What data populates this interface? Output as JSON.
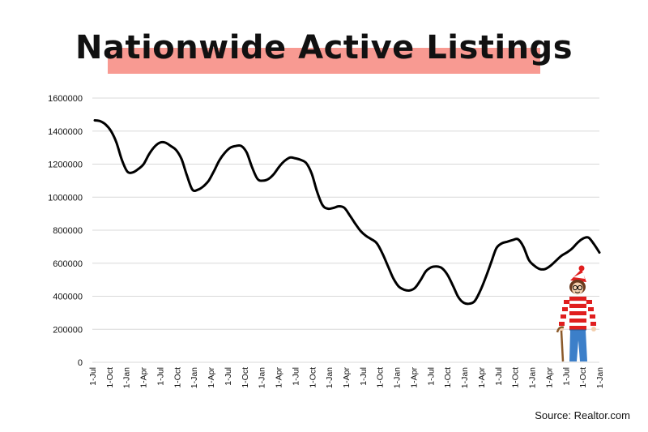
{
  "chart_data": {
    "type": "line",
    "title": "Nationwide Active Listings",
    "xlabel": "",
    "ylabel": "",
    "ylim": [
      0,
      1600000
    ],
    "y_ticks": [
      "0",
      "200000",
      "400000",
      "600000",
      "800000",
      "1000000",
      "1200000",
      "1400000",
      "1600000"
    ],
    "y_tick_values": [
      0,
      200000,
      400000,
      600000,
      800000,
      1000000,
      1200000,
      1400000,
      1600000
    ],
    "x_tick_labels": [
      "1-Jul",
      "1-Oct",
      "1-Jan",
      "1-Apr",
      "1-Jul",
      "1-Oct",
      "1-Jan",
      "1-Apr",
      "1-Jul",
      "1-Oct",
      "1-Jan",
      "1-Apr",
      "1-Jul",
      "1-Oct",
      "1-Jan",
      "1-Apr",
      "1-Jul",
      "1-Oct",
      "1-Jan",
      "1-Apr",
      "1-Jul",
      "1-Oct",
      "1-Jan",
      "1-Apr",
      "1-Jul",
      "1-Oct",
      "1-Jan",
      "1-Apr",
      "1-Jul",
      "1-Oct",
      "1-Jan"
    ],
    "grid": true,
    "line_color": "#000000",
    "series": [
      {
        "values": [
          1465000,
          1460000,
          1440000,
          1400000,
          1330000,
          1225000,
          1155000,
          1150000,
          1170000,
          1200000,
          1260000,
          1305000,
          1330000,
          1330000,
          1310000,
          1285000,
          1230000,
          1130000,
          1045000,
          1045000,
          1065000,
          1100000,
          1160000,
          1225000,
          1270000,
          1300000,
          1310000,
          1310000,
          1270000,
          1180000,
          1110000,
          1100000,
          1110000,
          1140000,
          1185000,
          1220000,
          1240000,
          1235000,
          1225000,
          1205000,
          1140000,
          1030000,
          950000,
          930000,
          935000,
          945000,
          935000,
          890000,
          840000,
          795000,
          765000,
          745000,
          720000,
          660000,
          585000,
          510000,
          460000,
          440000,
          435000,
          450000,
          495000,
          550000,
          575000,
          580000,
          570000,
          530000,
          465000,
          395000,
          360000,
          355000,
          370000,
          430000,
          510000,
          600000,
          690000,
          720000,
          730000,
          740000,
          745000,
          700000,
          620000,
          585000,
          565000,
          565000,
          585000,
          615000,
          645000,
          665000,
          690000,
          725000,
          750000,
          755000,
          715000,
          665000
        ]
      }
    ]
  },
  "source": "Source: Realtor.com",
  "colors": {
    "title_highlight": "#f89a92",
    "grid": "#d8d8d8",
    "line": "#000000"
  },
  "illustration": "walking-character-red-white-striped-shirt"
}
